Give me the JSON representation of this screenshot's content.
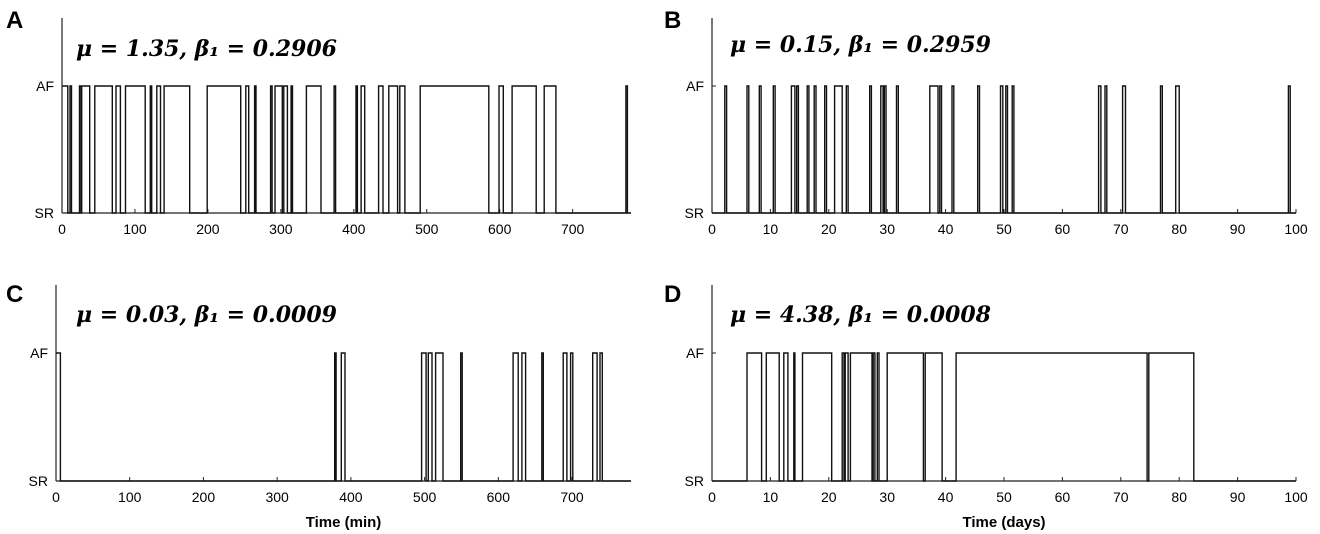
{
  "chart_data": [
    {
      "type": "line",
      "panel": "A",
      "annotation": "μ = 1.35, β₁ = 0.2906",
      "xlabel": "",
      "xlim": [
        0,
        780
      ],
      "xticks": [
        0,
        100,
        200,
        300,
        400,
        500,
        600,
        700
      ],
      "ylim": [
        0,
        1
      ],
      "yticks": [
        "SR",
        "AF"
      ],
      "series": [
        {
          "values_note": "AF = 1, SR = 0",
          "segments": [
            [
              0,
              8
            ],
            [
              11,
              13
            ],
            [
              24,
              26
            ],
            [
              27,
              38
            ],
            [
              45,
              69
            ],
            [
              74,
              80
            ],
            [
              87,
              114
            ],
            [
              121,
              123
            ],
            [
              130,
              135
            ],
            [
              140,
              175
            ],
            [
              199,
              245
            ],
            [
              252,
              256
            ],
            [
              264,
              266
            ],
            [
              286,
              288
            ],
            [
              292,
              302
            ],
            [
              304,
              309
            ],
            [
              314,
              316
            ],
            [
              335,
              355
            ],
            [
              373,
              375
            ],
            [
              403,
              405
            ],
            [
              410,
              415
            ],
            [
              434,
              440
            ],
            [
              448,
              460
            ],
            [
              463,
              470
            ],
            [
              491,
              585
            ],
            [
              599,
              605
            ],
            [
              617,
              650
            ],
            [
              661,
              677
            ],
            [
              773,
              775
            ]
          ]
        }
      ]
    },
    {
      "type": "line",
      "panel": "B",
      "annotation": "μ = 0.15, β₁ = 0.2959",
      "xlabel": "",
      "xlim": [
        0,
        100
      ],
      "xticks": [
        0,
        10,
        20,
        30,
        40,
        50,
        60,
        70,
        80,
        90,
        100
      ],
      "ylim": [
        0,
        1
      ],
      "yticks": [
        "SR",
        "AF"
      ],
      "series": [
        {
          "segments": [
            [
              2.2,
              2.5
            ],
            [
              6.0,
              6.3
            ],
            [
              8.1,
              8.4
            ],
            [
              10.5,
              10.8
            ],
            [
              13.6,
              14.2
            ],
            [
              14.5,
              14.8
            ],
            [
              16.3,
              16.6
            ],
            [
              17.5,
              17.8
            ],
            [
              19.3,
              19.6
            ],
            [
              21.0,
              22.3
            ],
            [
              23.0,
              23.3
            ],
            [
              27.0,
              27.3
            ],
            [
              28.9,
              29.3
            ],
            [
              29.5,
              29.8
            ],
            [
              31.6,
              31.9
            ],
            [
              37.3,
              38.7
            ],
            [
              39.0,
              39.3
            ],
            [
              41.1,
              41.4
            ],
            [
              45.5,
              45.8
            ],
            [
              49.4,
              49.8
            ],
            [
              50.3,
              50.6
            ],
            [
              51.4,
              51.7
            ],
            [
              66.2,
              66.6
            ],
            [
              67.3,
              67.6
            ],
            [
              70.3,
              70.8
            ],
            [
              76.8,
              77.1
            ],
            [
              79.4,
              80.0
            ],
            [
              98.7,
              99.0
            ]
          ]
        }
      ]
    },
    {
      "type": "line",
      "panel": "C",
      "annotation": "μ = 0.03, β₁ = 0.0009",
      "xlabel": "Time (min)",
      "xlim": [
        0,
        780
      ],
      "xticks": [
        0,
        100,
        200,
        300,
        400,
        500,
        600,
        700
      ],
      "ylim": [
        0,
        1
      ],
      "yticks": [
        "SR",
        "AF"
      ],
      "series": [
        {
          "segments": [
            [
              0,
              6
            ],
            [
              378,
              380
            ],
            [
              387,
              392
            ],
            [
              496,
              502
            ],
            [
              505,
              510
            ],
            [
              515,
              525
            ],
            [
              549,
              551
            ],
            [
              620,
              627
            ],
            [
              632,
              637
            ],
            [
              659,
              661
            ],
            [
              688,
              693
            ],
            [
              698,
              701
            ],
            [
              728,
              734
            ],
            [
              738,
              741
            ]
          ]
        }
      ]
    },
    {
      "type": "line",
      "panel": "D",
      "annotation": "μ = 4.38, β₁ = 0.0008",
      "xlabel": "Time (days)",
      "xlim": [
        0,
        100
      ],
      "xticks": [
        0,
        10,
        20,
        30,
        40,
        50,
        60,
        70,
        80,
        90,
        100
      ],
      "ylim": [
        0,
        1
      ],
      "yticks": [
        "SR",
        "AF"
      ],
      "series": [
        {
          "segments": [
            [
              6.0,
              8.5
            ],
            [
              9.3,
              11.5
            ],
            [
              12.3,
              13.0
            ],
            [
              14.0,
              14.2
            ],
            [
              15.5,
              20.5
            ],
            [
              22.3,
              22.6
            ],
            [
              22.8,
              23.3
            ],
            [
              23.7,
              27.4
            ],
            [
              27.6,
              27.9
            ],
            [
              28.3,
              28.6
            ],
            [
              30.0,
              36.2
            ],
            [
              36.5,
              39.4
            ],
            [
              41.8,
              74.5
            ],
            [
              74.8,
              82.5
            ]
          ]
        }
      ]
    }
  ]
}
